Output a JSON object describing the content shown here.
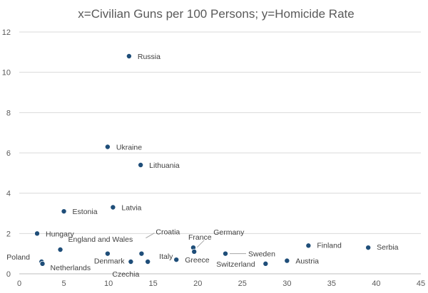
{
  "chart_data": {
    "type": "scatter",
    "title": "x=Civilian Guns per 100 Persons; y=Homicide Rate",
    "xlabel": "",
    "ylabel": "",
    "xlim": [
      0,
      45
    ],
    "ylim": [
      0,
      12
    ],
    "xticks": [
      0,
      5,
      10,
      15,
      20,
      25,
      30,
      35,
      40,
      45
    ],
    "yticks": [
      0,
      2,
      4,
      6,
      8,
      10,
      12
    ],
    "grid": "horizontal",
    "legend": "none",
    "colors": {
      "marker": "#1f4e79",
      "grid": "#d9d9d9",
      "text": "#595959"
    },
    "points": [
      {
        "label": "Russia",
        "x": 12.3,
        "y": 10.8
      },
      {
        "label": "Ukraine",
        "x": 9.9,
        "y": 6.3
      },
      {
        "label": "Lithuania",
        "x": 13.6,
        "y": 5.4
      },
      {
        "label": "Estonia",
        "x": 5.0,
        "y": 3.1
      },
      {
        "label": "Latvia",
        "x": 10.5,
        "y": 3.3
      },
      {
        "label": "Hungary",
        "x": 2.0,
        "y": 2.0
      },
      {
        "label": "England and Wales",
        "x": 4.6,
        "y": 1.2
      },
      {
        "label": "Poland",
        "x": 2.5,
        "y": 0.6
      },
      {
        "label": "Netherlands",
        "x": 2.6,
        "y": 0.5
      },
      {
        "label": "Denmark",
        "x": 9.9,
        "y": 1.0
      },
      {
        "label": "Croatia",
        "x": 13.7,
        "y": 1.0
      },
      {
        "label": "Czechia",
        "x": 12.5,
        "y": 0.6
      },
      {
        "label": "Italy",
        "x": 14.4,
        "y": 0.6
      },
      {
        "label": "Greece",
        "x": 17.6,
        "y": 0.7
      },
      {
        "label": "France",
        "x": 19.5,
        "y": 1.3
      },
      {
        "label": "Germany",
        "x": 19.6,
        "y": 1.1
      },
      {
        "label": "Sweden",
        "x": 23.1,
        "y": 1.0
      },
      {
        "label": "Switzerland",
        "x": 27.6,
        "y": 0.5
      },
      {
        "label": "Austria",
        "x": 30.0,
        "y": 0.65
      },
      {
        "label": "Finland",
        "x": 32.4,
        "y": 1.4
      },
      {
        "label": "Serbia",
        "x": 39.1,
        "y": 1.3
      }
    ]
  }
}
